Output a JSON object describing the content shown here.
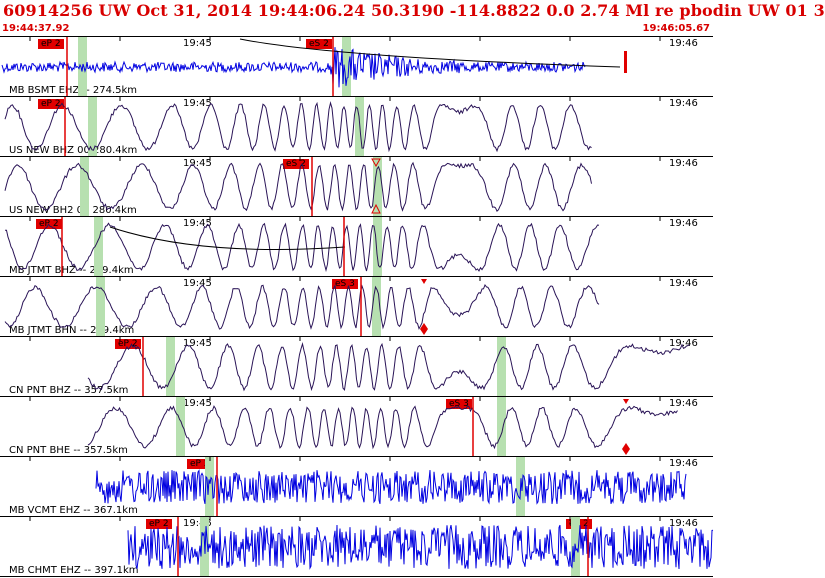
{
  "header": {
    "title": "60914256 UW Oct 31, 2014 19:44:06.24    50.3190 -114.8822  0.0 2.74 Ml re pbodin UW 01   3",
    "start_time": "19:44:37.92",
    "end_time": "19:46:05.67"
  },
  "time_labels": [
    "19:45",
    "19:46"
  ],
  "panels": [
    {
      "label": "MB BSMT EHZ -- 274.5km",
      "color": "#0000e0",
      "picks": [
        "eP 2",
        "eS 2"
      ]
    },
    {
      "label": "US NEW BHZ 00 280.4km",
      "color": "#2a1457",
      "picks": [
        "eP 2"
      ]
    },
    {
      "label": "US NEW BH2 00 280.4km",
      "color": "#2a1457",
      "picks": [
        "eS 2"
      ]
    },
    {
      "label": "MB JTMT BHZ -- 289.4km",
      "color": "#2a1457",
      "picks": [
        "eP 2"
      ]
    },
    {
      "label": "MB JTMT BHN -- 289.4km",
      "color": "#2a1457",
      "picks": [
        "eS 3"
      ]
    },
    {
      "label": "CN PNT BHZ -- 357.5km",
      "color": "#2a1457",
      "picks": [
        "eP 2"
      ]
    },
    {
      "label": "CN PNT BHE -- 357.5km",
      "color": "#2a1457",
      "picks": [
        "eS 3"
      ]
    },
    {
      "label": "MB VCMT EHZ -- 367.1km",
      "color": "#0000e0",
      "picks": [
        "eP 2"
      ]
    },
    {
      "label": "MB CHMT EHZ -- 397.1km",
      "color": "#0000e0",
      "picks": [
        "eP 2",
        "eS 2"
      ]
    }
  ],
  "colors": {
    "title": "#d80000",
    "pick_box": "#e00000",
    "band": "#b7e0b0",
    "marker": "#e00000"
  }
}
